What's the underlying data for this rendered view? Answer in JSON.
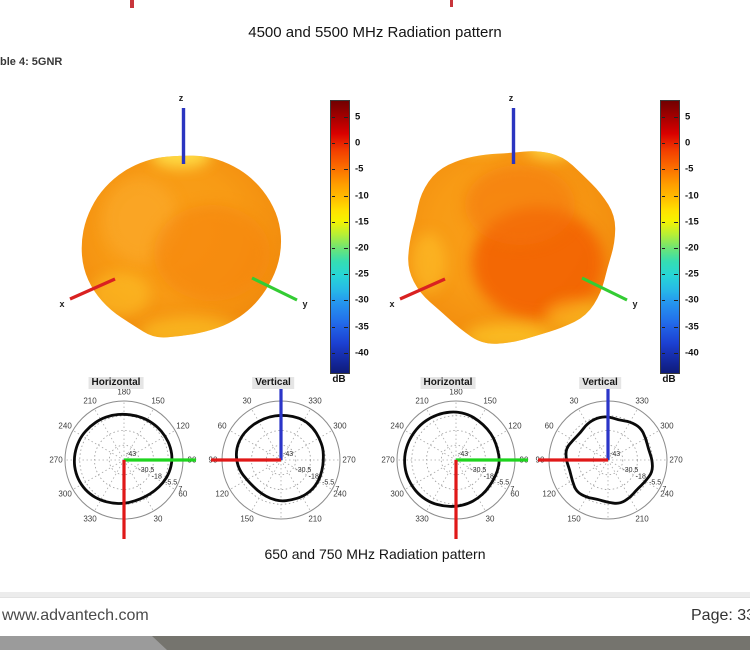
{
  "page": {
    "title": "4500 and 5500 MHz Radiation pattern",
    "table_label": "ble 4: 5GNR",
    "caption": "650 and 750 MHz Radiation pattern",
    "footer": {
      "website": "www.advantech.com",
      "page_label": "Page: 33"
    }
  },
  "colors": {
    "x_axis_red": "#D92121",
    "y_axis_green_3d": "#33CC33",
    "z_axis_blue": "#2B35C0",
    "polar_green": "#1ED41E",
    "polar_red": "#E01818",
    "polar_blue": "#2B35C8",
    "top_text_fragment": "#C8353B",
    "footer_bar_left": "#9B9B9B",
    "footer_bar_right": "#75746E"
  },
  "figure": {
    "colorbar": {
      "unit": "dB",
      "ticks": [
        "5",
        "0",
        "-5",
        "-10",
        "-15",
        "-20",
        "-25",
        "-30",
        "-35",
        "-40"
      ]
    },
    "surface_axis_labels": {
      "x": "x",
      "y": "y",
      "z": "z"
    }
  },
  "chart_data": [
    {
      "type": "3d-surface",
      "name": "surface-plot-left",
      "axes": [
        "x",
        "y",
        "z"
      ],
      "colorbar_unit": "dB",
      "colorbar_ticks_db": [
        5,
        0,
        -5,
        -10,
        -15,
        -20,
        -25,
        -30,
        -35,
        -40
      ],
      "appearance": "near-spherical orange shell, small yellow patch at z-axis entry and lower rim, gain mostly -8 to -3 dB"
    },
    {
      "type": "3d-surface",
      "name": "surface-plot-right",
      "axes": [
        "x",
        "y",
        "z"
      ],
      "colorbar_unit": "dB",
      "colorbar_ticks_db": [
        5,
        0,
        -5,
        -10,
        -15,
        -20,
        -25,
        -30,
        -35,
        -40
      ],
      "appearance": "lumpy orange shell with red-orange maxima center-right and yellow patches on top, gain mostly -8 to 0 dB"
    },
    {
      "type": "polar",
      "name": "polar-horizontal-left",
      "title": "Horizontal",
      "orientation": "horizontal",
      "r_axis_db": {
        "center": "-43",
        "rings": [
          "-30.5",
          "-18",
          "-5.5",
          "7"
        ]
      },
      "r_range_db": [
        -43,
        7
      ],
      "angle_labels_cw_from_top": [
        [
          0,
          "180"
        ],
        [
          30,
          "150"
        ],
        [
          60,
          "120"
        ],
        [
          90,
          "90"
        ],
        [
          120,
          "60"
        ],
        [
          150,
          "30"
        ],
        [
          210,
          "330"
        ],
        [
          240,
          "300"
        ],
        [
          270,
          "270"
        ],
        [
          300,
          "240"
        ],
        [
          330,
          "210"
        ]
      ],
      "overlay_axes": [
        {
          "dir": "right",
          "color": "#1ED41E",
          "len": 72
        },
        {
          "dir": "down",
          "color": "#E01818",
          "len": 79
        }
      ],
      "gain_db_cw_from_top_step15": [
        -4,
        -4,
        -3.5,
        -3,
        -2.5,
        -2,
        -2,
        -3,
        -4.5,
        -6,
        -7,
        -7,
        -6,
        -5,
        -3.5,
        -2,
        -1,
        -0.5,
        -0.5,
        -1,
        -1.5,
        -2.5,
        -3,
        -3.5
      ]
    },
    {
      "type": "polar",
      "name": "polar-vertical-left",
      "title": "Vertical",
      "orientation": "vertical",
      "r_axis_db": {
        "center": "-43",
        "rings": [
          "-30.5",
          "-18",
          "-5.5",
          "7"
        ]
      },
      "r_range_db": [
        -43,
        7
      ],
      "angle_labels_cw_from_top": [
        [
          30,
          "330"
        ],
        [
          60,
          "300"
        ],
        [
          90,
          "270"
        ],
        [
          120,
          "240"
        ],
        [
          150,
          "210"
        ],
        [
          210,
          "150"
        ],
        [
          240,
          "120"
        ],
        [
          270,
          "90"
        ],
        [
          300,
          "60"
        ],
        [
          330,
          "30"
        ]
      ],
      "overlay_axes": [
        {
          "dir": "up",
          "color": "#2B35C8",
          "len": 78
        },
        {
          "dir": "left",
          "color": "#E01818",
          "len": 70
        }
      ],
      "gain_db_cw_from_top_step15": [
        -5,
        -4.5,
        -4,
        -4.5,
        -5.5,
        -6,
        -7,
        -7,
        -6.5,
        -6.5,
        -7,
        -8,
        -8,
        -9,
        -10,
        -10.5,
        -9.5,
        -7,
        -5,
        -4,
        -4,
        -4.5,
        -5,
        -5
      ]
    },
    {
      "type": "polar",
      "name": "polar-horizontal-right",
      "title": "Horizontal",
      "orientation": "horizontal",
      "r_axis_db": {
        "center": "-43",
        "rings": [
          "-30.5",
          "-18",
          "-5.5",
          "7"
        ]
      },
      "r_range_db": [
        -43,
        7
      ],
      "angle_labels_cw_from_top": [
        [
          0,
          "180"
        ],
        [
          30,
          "150"
        ],
        [
          60,
          "120"
        ],
        [
          90,
          "90"
        ],
        [
          120,
          "60"
        ],
        [
          150,
          "30"
        ],
        [
          210,
          "330"
        ],
        [
          240,
          "300"
        ],
        [
          270,
          "270"
        ],
        [
          300,
          "240"
        ],
        [
          330,
          "210"
        ]
      ],
      "overlay_axes": [
        {
          "dir": "right",
          "color": "#1ED41E",
          "len": 72
        },
        {
          "dir": "down",
          "color": "#E01818",
          "len": 79
        }
      ],
      "gain_db_cw_from_top_step15": [
        -2,
        -3,
        -4.5,
        -5.5,
        -6,
        -6.5,
        -6,
        -6.5,
        -7,
        -6.5,
        -5.5,
        -4.5,
        -3.5,
        -2.5,
        -1,
        0,
        0.5,
        1,
        1,
        0.5,
        0,
        -0.5,
        -1,
        -1.5
      ]
    },
    {
      "type": "polar",
      "name": "polar-vertical-right",
      "title": "Vertical",
      "orientation": "vertical",
      "r_axis_db": {
        "center": "-43",
        "rings": [
          "-30.5",
          "-18",
          "-5.5",
          "7"
        ]
      },
      "r_range_db": [
        -43,
        7
      ],
      "angle_labels_cw_from_top": [
        [
          30,
          "330"
        ],
        [
          60,
          "300"
        ],
        [
          90,
          "270"
        ],
        [
          120,
          "240"
        ],
        [
          150,
          "210"
        ],
        [
          210,
          "150"
        ],
        [
          240,
          "120"
        ],
        [
          270,
          "90"
        ],
        [
          300,
          "60"
        ],
        [
          330,
          "30"
        ]
      ],
      "overlay_axes": [
        {
          "dir": "up",
          "color": "#2B35C8",
          "len": 78
        },
        {
          "dir": "left",
          "color": "#E01818",
          "len": 70
        }
      ],
      "gain_db_cw_from_top_step15": [
        -6,
        -8,
        -5.5,
        -4,
        -6,
        -7.5,
        -5.5,
        -4,
        -6.5,
        -8,
        -6,
        -4.5,
        -7,
        -8.5,
        -6.5,
        -5,
        -8,
        -9.5,
        -7.5,
        -6,
        -9,
        -10,
        -7.5,
        -6
      ]
    }
  ]
}
